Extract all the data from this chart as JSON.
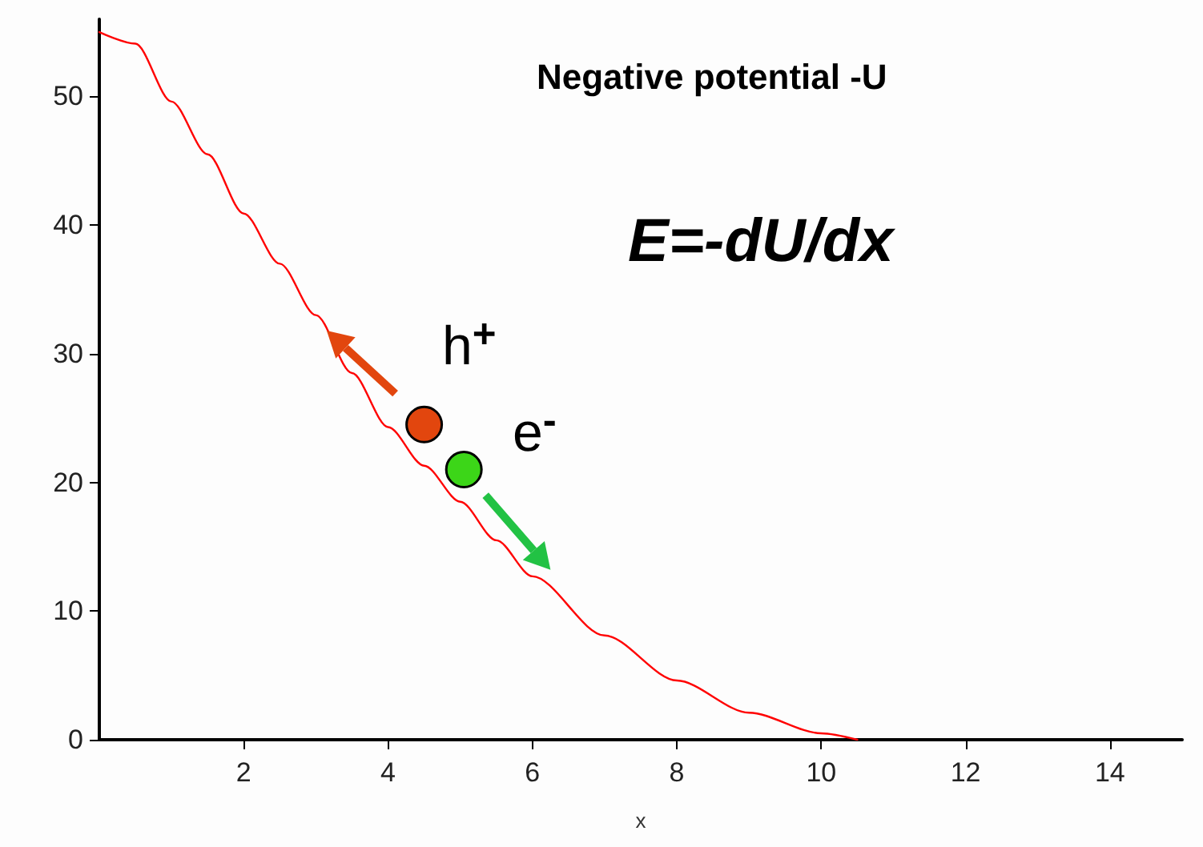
{
  "chart_data": {
    "type": "line",
    "title": "Negative potential -U",
    "xlabel": "x",
    "xlim": [
      0,
      15
    ],
    "ylim": [
      0,
      56
    ],
    "xticks": [
      2,
      4,
      6,
      8,
      10,
      12,
      14
    ],
    "yticks": [
      0,
      10,
      20,
      30,
      40,
      50
    ],
    "grid": false,
    "marker": "none",
    "line_style": "solid",
    "series": [
      {
        "color": "#ff0000",
        "x": [
          0,
          0.5,
          1,
          1.5,
          2,
          2.5,
          3,
          3.5,
          4,
          4.5,
          5,
          5.5,
          6,
          7,
          8,
          9,
          10,
          10.5
        ],
        "values": [
          55,
          54.1,
          49.6,
          45.5,
          40.9,
          37,
          33,
          28.5,
          24.3,
          21.3,
          18.5,
          15.5,
          12.7,
          8.1,
          4.6,
          2.1,
          0.5,
          0
        ]
      }
    ],
    "annotations": [
      "E=-dU/dx",
      "h$^{+}$",
      "e$^{-}$"
    ]
  }
}
